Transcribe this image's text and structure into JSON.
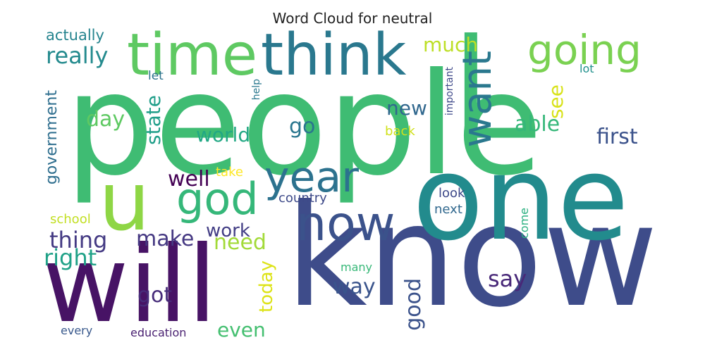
{
  "title": "Word Cloud for neutral",
  "words": [
    {
      "key": "people",
      "text": "people",
      "color": "#3fbc73"
    },
    {
      "key": "know",
      "text": "know",
      "color": "#3e4c8a"
    },
    {
      "key": "will",
      "text": "will",
      "color": "#471365"
    },
    {
      "key": "one",
      "text": "one",
      "color": "#228b8d"
    },
    {
      "key": "l",
      "text": "l",
      "color": "#3fbc73"
    },
    {
      "key": "u",
      "text": "u",
      "color": "#8ed645"
    },
    {
      "key": "time",
      "text": "time",
      "color": "#5ec962"
    },
    {
      "key": "think",
      "text": "think",
      "color": "#2a788e"
    },
    {
      "key": "going",
      "text": "going",
      "color": "#7ad151"
    },
    {
      "key": "now",
      "text": "now",
      "color": "#3b528b"
    },
    {
      "key": "god",
      "text": "god",
      "color": "#35b779"
    },
    {
      "key": "year",
      "text": "year",
      "color": "#2c728e"
    },
    {
      "key": "want",
      "text": "want",
      "color": "#2a788e"
    },
    {
      "key": "really",
      "text": "really",
      "color": "#238a8d"
    },
    {
      "key": "actually",
      "text": "actually",
      "color": "#25848e"
    },
    {
      "key": "let",
      "text": "let",
      "color": "#2c728e"
    },
    {
      "key": "help",
      "text": "help",
      "color": "#2a788e"
    },
    {
      "key": "much",
      "text": "much",
      "color": "#bddf26"
    },
    {
      "key": "important",
      "text": "important",
      "color": "#3e4989"
    },
    {
      "key": "lot",
      "text": "lot",
      "color": "#21918c"
    },
    {
      "key": "see",
      "text": "see",
      "color": "#d8e219"
    },
    {
      "key": "day",
      "text": "day",
      "color": "#5ec962"
    },
    {
      "key": "state",
      "text": "state",
      "color": "#1f9e89"
    },
    {
      "key": "new",
      "text": "new",
      "color": "#31688e"
    },
    {
      "key": "able",
      "text": "able",
      "color": "#35b779"
    },
    {
      "key": "first",
      "text": "first",
      "color": "#3b528b"
    },
    {
      "key": "government",
      "text": "government",
      "color": "#2e6e8e"
    },
    {
      "key": "world",
      "text": "world",
      "color": "#22a884"
    },
    {
      "key": "go",
      "text": "go",
      "color": "#2a768e"
    },
    {
      "key": "back",
      "text": "back",
      "color": "#d0e11c"
    },
    {
      "key": "well",
      "text": "well",
      "color": "#440154"
    },
    {
      "key": "take",
      "text": "take",
      "color": "#fde725"
    },
    {
      "key": "country",
      "text": "country",
      "color": "#3e4a89"
    },
    {
      "key": "look",
      "text": "look",
      "color": "#3e4989"
    },
    {
      "key": "next",
      "text": "next",
      "color": "#31688e"
    },
    {
      "key": "come",
      "text": "come",
      "color": "#29af7f"
    },
    {
      "key": "school",
      "text": "school",
      "color": "#c2df23"
    },
    {
      "key": "thing",
      "text": "thing",
      "color": "#443a83"
    },
    {
      "key": "make",
      "text": "make",
      "color": "#453882"
    },
    {
      "key": "work",
      "text": "work",
      "color": "#433e85"
    },
    {
      "key": "need",
      "text": "need",
      "color": "#a2da37"
    },
    {
      "key": "right",
      "text": "right",
      "color": "#1fa187"
    },
    {
      "key": "today",
      "text": "today",
      "color": "#dde318"
    },
    {
      "key": "got",
      "text": "got",
      "color": "#472c7a"
    },
    {
      "key": "way",
      "text": "way",
      "color": "#3a548c"
    },
    {
      "key": "good",
      "text": "good",
      "color": "#3b528b"
    },
    {
      "key": "say",
      "text": "say",
      "color": "#482878"
    },
    {
      "key": "many",
      "text": "many",
      "color": "#37b878"
    },
    {
      "key": "even",
      "text": "even",
      "color": "#44bf70"
    },
    {
      "key": "every",
      "text": "every",
      "color": "#38588c"
    },
    {
      "key": "education",
      "text": "education",
      "color": "#481f70"
    }
  ]
}
